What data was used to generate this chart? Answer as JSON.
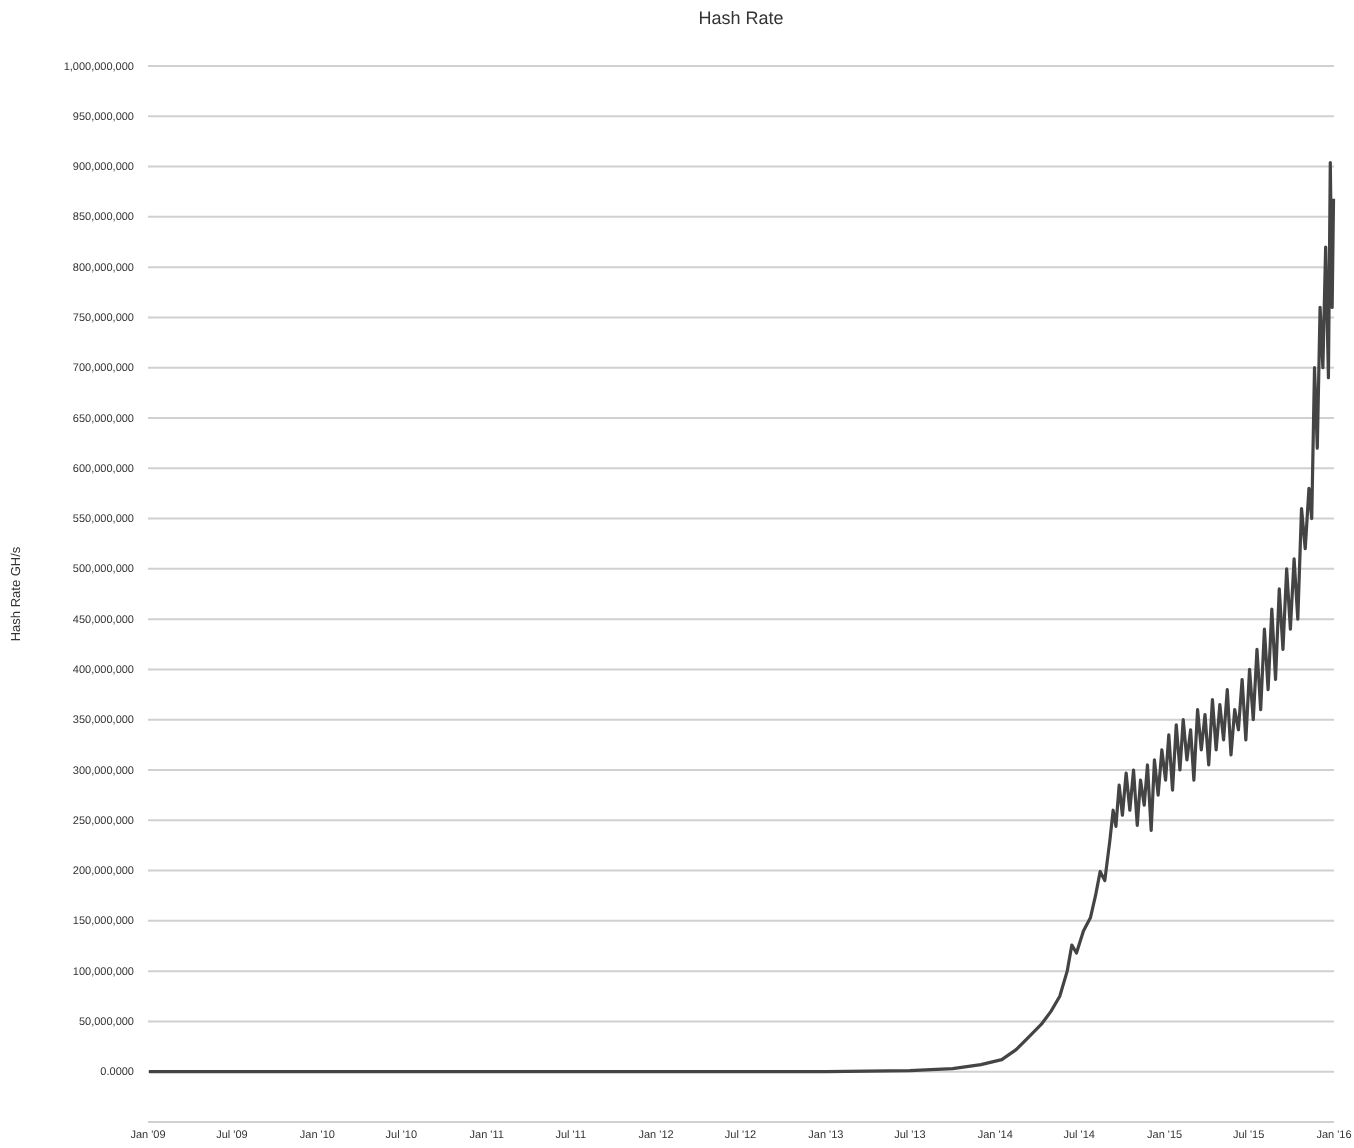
{
  "chart_data": {
    "type": "line",
    "title": "Hash Rate",
    "ylabel": "Hash Rate GH/s",
    "x": [
      "2009-01-03",
      "2010-01-01",
      "2011-01-01",
      "2012-01-01",
      "2013-01-01",
      "2013-07-01",
      "2013-10-01",
      "2013-12-01",
      "2014-01-15",
      "2014-02-15",
      "2014-03-15",
      "2014-04-10",
      "2014-05-01",
      "2014-05-20",
      "2014-06-05",
      "2014-06-15",
      "2014-06-25",
      "2014-07-10",
      "2014-07-25",
      "2014-08-05",
      "2014-08-15",
      "2014-08-25",
      "2014-09-05",
      "2014-09-12",
      "2014-09-18",
      "2014-09-25",
      "2014-10-02",
      "2014-10-10",
      "2014-10-18",
      "2014-10-26",
      "2014-11-03",
      "2014-11-10",
      "2014-11-18",
      "2014-11-25",
      "2014-12-03",
      "2014-12-10",
      "2014-12-18",
      "2014-12-26",
      "2015-01-03",
      "2015-01-10",
      "2015-01-18",
      "2015-01-26",
      "2015-02-03",
      "2015-02-10",
      "2015-02-18",
      "2015-02-26",
      "2015-03-05",
      "2015-03-13",
      "2015-03-21",
      "2015-03-29",
      "2015-04-06",
      "2015-04-14",
      "2015-04-22",
      "2015-04-30",
      "2015-05-08",
      "2015-05-16",
      "2015-05-24",
      "2015-06-01",
      "2015-06-09",
      "2015-06-17",
      "2015-06-25",
      "2015-07-03",
      "2015-07-11",
      "2015-07-19",
      "2015-07-27",
      "2015-08-04",
      "2015-08-12",
      "2015-08-20",
      "2015-08-28",
      "2015-09-05",
      "2015-09-13",
      "2015-09-21",
      "2015-09-29",
      "2015-10-07",
      "2015-10-15",
      "2015-10-23",
      "2015-10-31",
      "2015-11-08",
      "2015-11-14",
      "2015-11-20",
      "2015-11-26",
      "2015-12-02",
      "2015-12-08",
      "2015-12-14",
      "2015-12-20",
      "2015-12-24",
      "2015-12-28",
      "2015-12-31"
    ],
    "series": [
      {
        "color": "#444444",
        "values": [
          0,
          0,
          0,
          0,
          0,
          1000000,
          3000000,
          7000000,
          12000000,
          22000000,
          35000000,
          47000000,
          60000000,
          75000000,
          100000000,
          126000000,
          118000000,
          140000000,
          153000000,
          175000000,
          199000000,
          190000000,
          230000000,
          260000000,
          244000000,
          285000000,
          255000000,
          297000000,
          260000000,
          300000000,
          245000000,
          290000000,
          265000000,
          305000000,
          240000000,
          310000000,
          275000000,
          320000000,
          290000000,
          335000000,
          280000000,
          345000000,
          300000000,
          350000000,
          310000000,
          340000000,
          290000000,
          360000000,
          320000000,
          355000000,
          305000000,
          370000000,
          320000000,
          365000000,
          330000000,
          380000000,
          315000000,
          360000000,
          340000000,
          390000000,
          330000000,
          400000000,
          350000000,
          420000000,
          360000000,
          440000000,
          380000000,
          460000000,
          390000000,
          480000000,
          420000000,
          500000000,
          440000000,
          510000000,
          450000000,
          560000000,
          520000000,
          580000000,
          550000000,
          700000000,
          620000000,
          760000000,
          700000000,
          820000000,
          690000000,
          904000000,
          760000000,
          868000000
        ]
      }
    ],
    "xlim": [
      "2009-01-01",
      "2016-01-01"
    ],
    "xticks": [
      {
        "value": "2009-01-01",
        "label": "Jan '09"
      },
      {
        "value": "2009-07-01",
        "label": "Jul '09"
      },
      {
        "value": "2010-01-01",
        "label": "Jan '10"
      },
      {
        "value": "2010-07-01",
        "label": "Jul '10"
      },
      {
        "value": "2011-01-01",
        "label": "Jan '11"
      },
      {
        "value": "2011-07-01",
        "label": "Jul '11"
      },
      {
        "value": "2012-01-01",
        "label": "Jan '12"
      },
      {
        "value": "2012-07-01",
        "label": "Jul '12"
      },
      {
        "value": "2013-01-01",
        "label": "Jan '13"
      },
      {
        "value": "2013-07-01",
        "label": "Jul '13"
      },
      {
        "value": "2014-01-01",
        "label": "Jan '14"
      },
      {
        "value": "2014-07-01",
        "label": "Jul '14"
      },
      {
        "value": "2015-01-01",
        "label": "Jan '15"
      },
      {
        "value": "2015-07-01",
        "label": "Jul '15"
      },
      {
        "value": "2016-01-01",
        "label": "Jan '16"
      }
    ],
    "ylim": [
      -50000000,
      1000000000
    ],
    "yticks": [
      {
        "value": 0,
        "label": "0.0000"
      },
      {
        "value": 50000000,
        "label": "50,000,000"
      },
      {
        "value": 100000000,
        "label": "100,000,000"
      },
      {
        "value": 150000000,
        "label": "150,000,000"
      },
      {
        "value": 200000000,
        "label": "200,000,000"
      },
      {
        "value": 250000000,
        "label": "250,000,000"
      },
      {
        "value": 300000000,
        "label": "300,000,000"
      },
      {
        "value": 350000000,
        "label": "350,000,000"
      },
      {
        "value": 400000000,
        "label": "400,000,000"
      },
      {
        "value": 450000000,
        "label": "450,000,000"
      },
      {
        "value": 500000000,
        "label": "500,000,000"
      },
      {
        "value": 550000000,
        "label": "550,000,000"
      },
      {
        "value": 600000000,
        "label": "600,000,000"
      },
      {
        "value": 650000000,
        "label": "650,000,000"
      },
      {
        "value": 700000000,
        "label": "700,000,000"
      },
      {
        "value": 750000000,
        "label": "750,000,000"
      },
      {
        "value": 800000000,
        "label": "800,000,000"
      },
      {
        "value": 850000000,
        "label": "850,000,000"
      },
      {
        "value": 900000000,
        "label": "900,000,000"
      },
      {
        "value": 950000000,
        "label": "950,000,000"
      },
      {
        "value": 1000000000,
        "label": "1,000,000,000"
      }
    ],
    "grid": "y",
    "marker": "none",
    "line_style": "solid"
  }
}
